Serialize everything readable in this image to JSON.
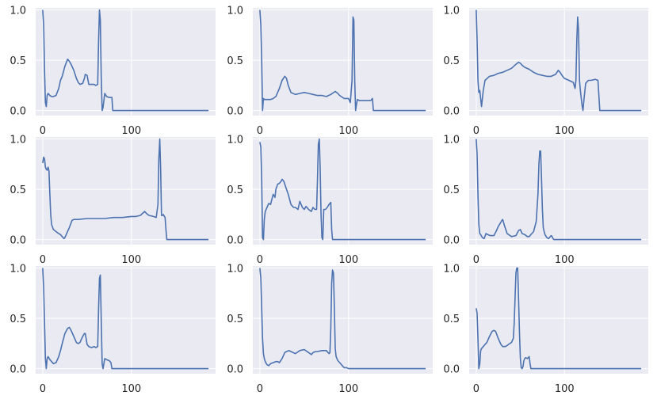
{
  "figure": {
    "background": "#ffffff",
    "axes_facecolor": "#eaeaf2",
    "grid_color": "#ffffff",
    "line_color": "#4c72b0",
    "grid": true,
    "layout": {
      "rows": 3,
      "cols": 3
    }
  },
  "chart_data": [
    {
      "type": "line",
      "title": "",
      "xlabel": "",
      "ylabel": "",
      "xlim": [
        -8,
        195
      ],
      "ylim": [
        -0.05,
        1.02
      ],
      "xticks": [
        0,
        100
      ],
      "xtick_labels": [
        "0",
        "100"
      ],
      "yticks": [
        0.0,
        0.5,
        1.0
      ],
      "ytick_labels": [
        "0.0",
        "0.5",
        "1.0"
      ],
      "x": [
        0,
        1,
        2,
        3,
        4,
        5,
        6,
        8,
        10,
        12,
        15,
        18,
        20,
        22,
        25,
        28,
        30,
        32,
        35,
        38,
        40,
        42,
        45,
        47,
        48,
        50,
        52,
        55,
        58,
        60,
        62,
        63,
        64,
        65,
        66,
        67,
        68,
        70,
        72,
        75,
        78,
        79,
        80,
        100,
        140,
        187
      ],
      "values": [
        1.0,
        0.85,
        0.4,
        0.08,
        0.04,
        0.15,
        0.17,
        0.15,
        0.14,
        0.14,
        0.15,
        0.22,
        0.3,
        0.34,
        0.44,
        0.51,
        0.49,
        0.46,
        0.4,
        0.32,
        0.28,
        0.26,
        0.27,
        0.32,
        0.36,
        0.35,
        0.26,
        0.26,
        0.26,
        0.25,
        0.26,
        0.7,
        1.0,
        0.9,
        0.35,
        0.0,
        0.03,
        0.17,
        0.14,
        0.13,
        0.13,
        0.0,
        0.0,
        0.0,
        0.0,
        0.0
      ]
    },
    {
      "type": "line",
      "title": "",
      "xlabel": "",
      "ylabel": "",
      "xlim": [
        -8,
        195
      ],
      "ylim": [
        -0.05,
        1.02
      ],
      "xticks": [
        0,
        100
      ],
      "xtick_labels": [
        "0",
        "100"
      ],
      "yticks": [
        0.0,
        0.5,
        1.0
      ],
      "ytick_labels": [
        "0.0",
        "0.5",
        "1.0"
      ],
      "x": [
        0,
        1,
        2,
        3,
        4,
        5,
        8,
        12,
        15,
        18,
        22,
        25,
        28,
        30,
        32,
        35,
        40,
        45,
        50,
        55,
        60,
        65,
        70,
        75,
        80,
        85,
        88,
        90,
        95,
        100,
        102,
        104,
        105,
        106,
        107,
        108,
        109,
        110,
        112,
        115,
        120,
        125,
        127,
        128,
        130,
        187
      ],
      "values": [
        1.0,
        0.85,
        0.5,
        0.0,
        0.12,
        0.11,
        0.11,
        0.11,
        0.12,
        0.14,
        0.22,
        0.3,
        0.34,
        0.32,
        0.25,
        0.18,
        0.16,
        0.17,
        0.18,
        0.17,
        0.16,
        0.15,
        0.15,
        0.14,
        0.16,
        0.19,
        0.17,
        0.15,
        0.12,
        0.12,
        0.08,
        0.3,
        0.93,
        0.9,
        0.3,
        0.0,
        0.06,
        0.11,
        0.1,
        0.1,
        0.1,
        0.1,
        0.12,
        0.0,
        0.0,
        0.0
      ]
    },
    {
      "type": "line",
      "title": "",
      "xlabel": "",
      "ylabel": "",
      "xlim": [
        -8,
        195
      ],
      "ylim": [
        -0.05,
        1.02
      ],
      "xticks": [
        0,
        100
      ],
      "xtick_labels": [
        "0",
        "100"
      ],
      "yticks": [
        0.0,
        0.5,
        1.0
      ],
      "ytick_labels": [
        "0.0",
        "0.5",
        "1.0"
      ],
      "x": [
        0,
        1,
        2,
        3,
        4,
        5,
        6,
        8,
        10,
        15,
        20,
        25,
        30,
        35,
        40,
        45,
        48,
        50,
        52,
        55,
        60,
        65,
        70,
        75,
        80,
        85,
        90,
        93,
        95,
        98,
        100,
        105,
        110,
        112,
        113,
        114,
        115,
        116,
        117,
        118,
        120,
        121,
        122,
        124,
        127,
        130,
        135,
        138,
        140,
        187
      ],
      "values": [
        1.0,
        0.7,
        0.3,
        0.18,
        0.2,
        0.12,
        0.04,
        0.2,
        0.3,
        0.34,
        0.35,
        0.37,
        0.38,
        0.4,
        0.42,
        0.46,
        0.48,
        0.47,
        0.45,
        0.43,
        0.41,
        0.38,
        0.36,
        0.35,
        0.34,
        0.34,
        0.36,
        0.4,
        0.38,
        0.34,
        0.32,
        0.3,
        0.28,
        0.22,
        0.3,
        0.7,
        0.93,
        0.8,
        0.3,
        0.2,
        0.05,
        0.0,
        0.1,
        0.27,
        0.3,
        0.3,
        0.31,
        0.3,
        0.0,
        0.0
      ]
    },
    {
      "type": "line",
      "title": "",
      "xlabel": "",
      "ylabel": "",
      "xlim": [
        -8,
        195
      ],
      "ylim": [
        -0.05,
        1.02
      ],
      "xticks": [
        0,
        100
      ],
      "xtick_labels": [
        "0",
        "100"
      ],
      "yticks": [
        0.0,
        0.5,
        1.0
      ],
      "ytick_labels": [
        "0.0",
        "0.5",
        "1.0"
      ],
      "x": [
        0,
        1,
        2,
        3,
        4,
        5,
        6,
        7,
        8,
        9,
        10,
        12,
        15,
        18,
        20,
        22,
        24,
        25,
        27,
        30,
        33,
        35,
        40,
        50,
        60,
        70,
        80,
        90,
        100,
        105,
        110,
        115,
        117,
        120,
        125,
        128,
        130,
        131,
        132,
        133,
        134,
        135,
        136,
        138,
        139,
        140,
        187
      ],
      "values": [
        0.76,
        0.82,
        0.8,
        0.72,
        0.7,
        0.69,
        0.72,
        0.68,
        0.45,
        0.25,
        0.15,
        0.1,
        0.08,
        0.06,
        0.05,
        0.03,
        0.01,
        0.02,
        0.06,
        0.12,
        0.19,
        0.2,
        0.2,
        0.21,
        0.21,
        0.21,
        0.22,
        0.22,
        0.23,
        0.23,
        0.24,
        0.28,
        0.26,
        0.24,
        0.23,
        0.22,
        0.35,
        0.8,
        1.0,
        0.7,
        0.24,
        0.24,
        0.25,
        0.22,
        0.1,
        0.0,
        0.0
      ]
    },
    {
      "type": "line",
      "title": "",
      "xlabel": "",
      "ylabel": "",
      "xlim": [
        -8,
        195
      ],
      "ylim": [
        -0.05,
        1.02
      ],
      "xticks": [
        0,
        100
      ],
      "xtick_labels": [
        "0",
        "100"
      ],
      "yticks": [
        0.0,
        0.5,
        1.0
      ],
      "ytick_labels": [
        "0.0",
        "0.5",
        "1.0"
      ],
      "x": [
        0,
        1,
        2,
        3,
        4,
        5,
        6,
        8,
        10,
        12,
        15,
        17,
        18,
        20,
        22,
        24,
        25,
        27,
        30,
        32,
        35,
        38,
        40,
        43,
        45,
        48,
        50,
        52,
        55,
        58,
        60,
        62,
        64,
        65,
        66,
        67,
        68,
        69,
        70,
        71,
        72,
        74,
        76,
        78,
        80,
        81,
        82,
        100,
        187
      ],
      "values": [
        0.97,
        0.92,
        0.6,
        0.02,
        0.0,
        0.2,
        0.28,
        0.32,
        0.36,
        0.35,
        0.45,
        0.42,
        0.5,
        0.55,
        0.56,
        0.58,
        0.6,
        0.58,
        0.5,
        0.45,
        0.35,
        0.32,
        0.32,
        0.3,
        0.38,
        0.32,
        0.3,
        0.33,
        0.3,
        0.28,
        0.32,
        0.3,
        0.3,
        0.6,
        0.95,
        1.0,
        0.7,
        0.25,
        0.02,
        0.0,
        0.3,
        0.3,
        0.32,
        0.35,
        0.37,
        0.1,
        0.0,
        0.0,
        0.0
      ]
    },
    {
      "type": "line",
      "title": "",
      "xlabel": "",
      "ylabel": "",
      "xlim": [
        -8,
        195
      ],
      "ylim": [
        -0.05,
        1.02
      ],
      "xticks": [
        0,
        100
      ],
      "xtick_labels": [
        "0",
        "100"
      ],
      "yticks": [
        0.0,
        0.5,
        1.0
      ],
      "ytick_labels": [
        "0.0",
        "0.5",
        "1.0"
      ],
      "x": [
        0,
        1,
        2,
        3,
        4,
        5,
        7,
        9,
        11,
        13,
        16,
        20,
        23,
        25,
        27,
        29,
        30,
        32,
        35,
        40,
        45,
        48,
        50,
        52,
        55,
        58,
        60,
        63,
        65,
        68,
        70,
        71,
        72,
        73,
        74,
        75,
        76,
        77,
        78,
        80,
        82,
        84,
        85,
        86,
        87,
        88,
        100,
        187
      ],
      "values": [
        1.0,
        0.85,
        0.45,
        0.15,
        0.06,
        0.05,
        0.02,
        0.01,
        0.06,
        0.05,
        0.04,
        0.04,
        0.09,
        0.13,
        0.16,
        0.19,
        0.2,
        0.14,
        0.06,
        0.03,
        0.04,
        0.09,
        0.1,
        0.06,
        0.05,
        0.03,
        0.03,
        0.06,
        0.08,
        0.18,
        0.45,
        0.75,
        0.88,
        0.88,
        0.6,
        0.3,
        0.12,
        0.08,
        0.05,
        0.02,
        0.01,
        0.03,
        0.04,
        0.03,
        0.01,
        0.0,
        0.0,
        0.0
      ]
    },
    {
      "type": "line",
      "title": "",
      "xlabel": "",
      "ylabel": "",
      "xlim": [
        -8,
        195
      ],
      "ylim": [
        -0.05,
        1.02
      ],
      "xticks": [
        0,
        100
      ],
      "xtick_labels": [
        "0",
        "100"
      ],
      "yticks": [
        0.0,
        0.5,
        1.0
      ],
      "ytick_labels": [
        "0.0",
        "0.5",
        "1.0"
      ],
      "x": [
        0,
        1,
        2,
        3,
        4,
        5,
        6,
        8,
        10,
        12,
        15,
        18,
        20,
        22,
        25,
        28,
        30,
        32,
        35,
        38,
        40,
        42,
        45,
        47,
        48,
        50,
        52,
        55,
        58,
        60,
        62,
        63,
        64,
        65,
        66,
        67,
        68,
        70,
        72,
        75,
        77,
        78,
        100,
        187
      ],
      "values": [
        1.0,
        0.8,
        0.45,
        0.1,
        0.0,
        0.1,
        0.12,
        0.09,
        0.07,
        0.05,
        0.06,
        0.12,
        0.18,
        0.25,
        0.35,
        0.4,
        0.41,
        0.38,
        0.32,
        0.26,
        0.25,
        0.26,
        0.32,
        0.35,
        0.35,
        0.24,
        0.22,
        0.21,
        0.22,
        0.21,
        0.22,
        0.6,
        0.9,
        0.93,
        0.5,
        0.05,
        0.0,
        0.1,
        0.09,
        0.08,
        0.06,
        0.0,
        0.0,
        0.0
      ]
    },
    {
      "type": "line",
      "title": "",
      "xlabel": "",
      "ylabel": "",
      "xlim": [
        -8,
        195
      ],
      "ylim": [
        -0.05,
        1.02
      ],
      "xticks": [
        0,
        100
      ],
      "xtick_labels": [
        "0",
        "100"
      ],
      "yticks": [
        0.0,
        0.5,
        1.0
      ],
      "ytick_labels": [
        "0.0",
        "0.5",
        "1.0"
      ],
      "x": [
        0,
        1,
        2,
        3,
        4,
        5,
        6,
        8,
        10,
        12,
        15,
        18,
        20,
        22,
        25,
        28,
        30,
        33,
        35,
        40,
        45,
        50,
        55,
        58,
        60,
        63,
        65,
        70,
        75,
        77,
        78,
        79,
        80,
        81,
        82,
        83,
        84,
        85,
        86,
        88,
        90,
        93,
        95,
        98,
        100,
        187
      ],
      "values": [
        1.0,
        0.9,
        0.6,
        0.3,
        0.15,
        0.1,
        0.07,
        0.04,
        0.03,
        0.05,
        0.06,
        0.07,
        0.07,
        0.06,
        0.1,
        0.16,
        0.17,
        0.18,
        0.17,
        0.15,
        0.18,
        0.19,
        0.16,
        0.14,
        0.16,
        0.17,
        0.17,
        0.18,
        0.18,
        0.16,
        0.15,
        0.16,
        0.4,
        0.85,
        0.98,
        0.95,
        0.6,
        0.2,
        0.12,
        0.08,
        0.06,
        0.03,
        0.01,
        0.01,
        0.0,
        0.0
      ]
    },
    {
      "type": "line",
      "title": "",
      "xlabel": "",
      "ylabel": "",
      "xlim": [
        -8,
        195
      ],
      "ylim": [
        -0.05,
        1.02
      ],
      "xticks": [
        0,
        100
      ],
      "xtick_labels": [
        "0",
        "100"
      ],
      "yticks": [
        0.0,
        0.5,
        1.0
      ],
      "ytick_labels": [
        "0.0",
        "0.5",
        "1.0"
      ],
      "x": [
        0,
        1,
        2,
        3,
        4,
        5,
        6,
        8,
        10,
        12,
        15,
        18,
        20,
        22,
        25,
        28,
        30,
        33,
        35,
        38,
        40,
        42,
        43,
        44,
        45,
        46,
        47,
        48,
        49,
        50,
        51,
        52,
        53,
        54,
        55,
        56,
        58,
        60,
        61,
        62,
        100,
        187
      ],
      "values": [
        0.6,
        0.55,
        0.3,
        0.0,
        0.05,
        0.18,
        0.2,
        0.22,
        0.24,
        0.26,
        0.32,
        0.37,
        0.38,
        0.37,
        0.3,
        0.24,
        0.22,
        0.22,
        0.23,
        0.25,
        0.26,
        0.3,
        0.45,
        0.7,
        0.95,
        1.0,
        1.0,
        0.7,
        0.35,
        0.1,
        0.01,
        0.0,
        0.02,
        0.08,
        0.1,
        0.11,
        0.1,
        0.12,
        0.05,
        0.0,
        0.0,
        0.0
      ]
    }
  ]
}
